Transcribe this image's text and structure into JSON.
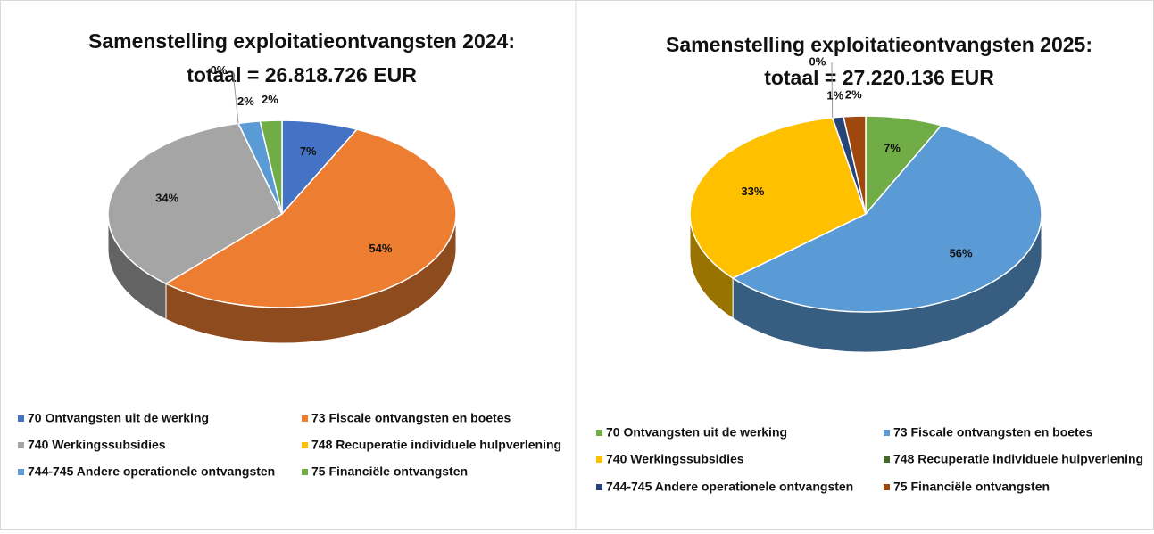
{
  "chart_data": [
    {
      "type": "pie3d",
      "title": [
        "Samenstelling exploitatieontvangsten 2024:",
        "totaal =  26.818.726 EUR"
      ],
      "categories": [
        "70 Ontvangsten uit de werking",
        "73 Fiscale ontvangsten en boetes",
        "740 Werkingssubsidies",
        "748 Recuperatie individuele hulpverlening",
        "744-745 Andere operationele ontvangsten",
        "75 Financiële ontvangsten"
      ],
      "values": [
        7,
        54,
        34,
        0,
        2,
        2
      ],
      "value_labels": [
        "7%",
        "54%",
        "34%",
        "0%",
        "2%",
        "2%"
      ],
      "colors": [
        "#4472c4",
        "#ed7d31",
        "#a5a5a5",
        "#ffc000",
        "#5b9bd5",
        "#70ad47"
      ],
      "legend": "bottom"
    },
    {
      "type": "pie3d",
      "title": [
        "Samenstelling exploitatieontvangsten 2025:",
        "totaal = 27.220.136  EUR"
      ],
      "categories": [
        "70 Ontvangsten uit de werking",
        "73 Fiscale ontvangsten en boetes",
        "740 Werkingssubsidies",
        "748 Recuperatie individuele hulpverlening",
        "744-745 Andere operationele ontvangsten",
        "75 Financiële ontvangsten"
      ],
      "values": [
        7,
        56,
        33,
        0,
        1,
        2
      ],
      "value_labels": [
        "7%",
        "56%",
        "33%",
        "0%",
        "1%",
        "2%"
      ],
      "colors": [
        "#70ad47",
        "#5b9bd5",
        "#ffc000",
        "#43682b",
        "#264478",
        "#9e480e"
      ],
      "legend": "bottom"
    }
  ]
}
